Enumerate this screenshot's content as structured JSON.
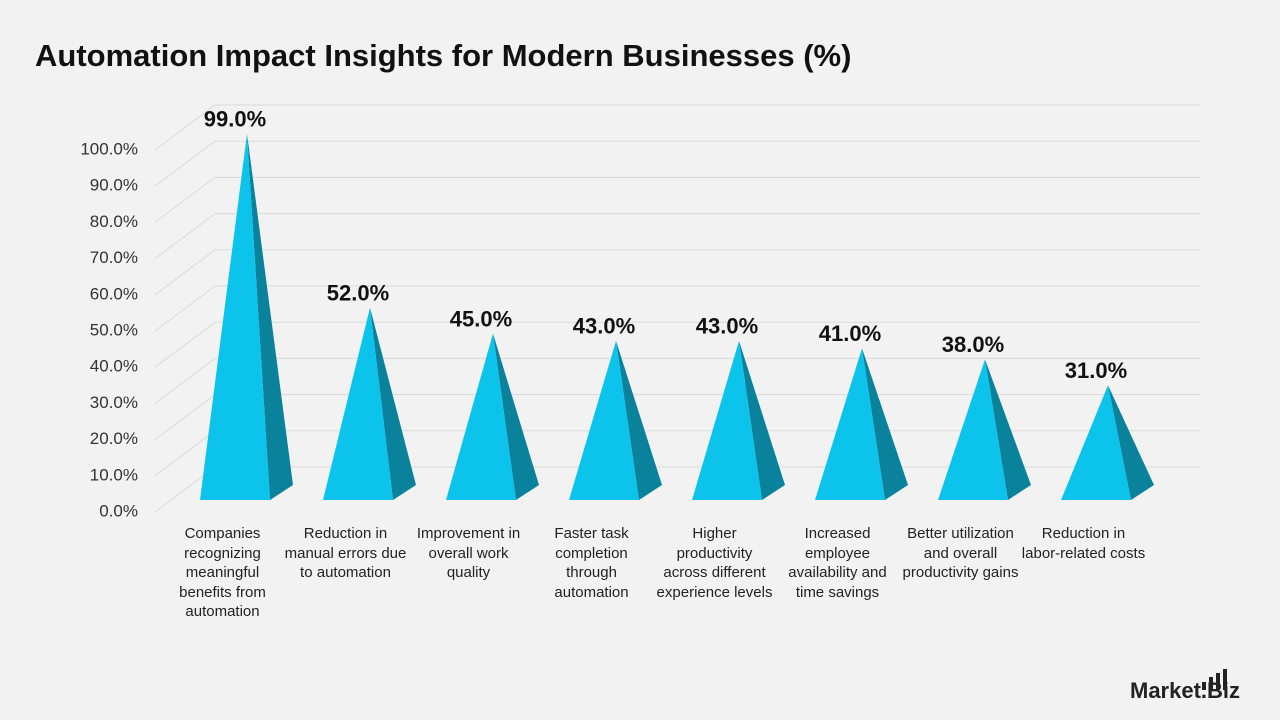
{
  "title": "Automation Impact Insights for Modern Businesses (%)",
  "brand": "Market.Biz",
  "chart_data": {
    "type": "pyramid",
    "categories": [
      "Companies recognizing meaningful benefits from automation",
      "Reduction in manual errors due to automation",
      "Improvement in overall work quality",
      "Faster task completion through automation",
      "Higher productivity across different experience levels",
      "Increased employee availability and time savings",
      "Better utilization and overall productivity gains",
      "Reduction in labor-related costs"
    ],
    "values": [
      99,
      52,
      45,
      43,
      43,
      41,
      38,
      31
    ],
    "value_labels": [
      "99.0%",
      "52.0%",
      "45.0%",
      "43.0%",
      "43.0%",
      "41.0%",
      "38.0%",
      "31.0%"
    ],
    "color": "#0cc3ec",
    "side_color": "#0a829c",
    "ylim": [
      0,
      100
    ],
    "yticks": [
      {
        "value": 0,
        "label": "0.0%"
      },
      {
        "value": 10,
        "label": "10.0%"
      },
      {
        "value": 20,
        "label": "20.0%"
      },
      {
        "value": 30,
        "label": "30.0%"
      },
      {
        "value": 40,
        "label": "40.0%"
      },
      {
        "value": 50,
        "label": "50.0%"
      },
      {
        "value": 60,
        "label": "60.0%"
      },
      {
        "value": 70,
        "label": "70.0%"
      },
      {
        "value": 80,
        "label": "80.0%"
      },
      {
        "value": 90,
        "label": "90.0%"
      },
      {
        "value": 100,
        "label": "100.0%"
      }
    ],
    "grid": true
  }
}
